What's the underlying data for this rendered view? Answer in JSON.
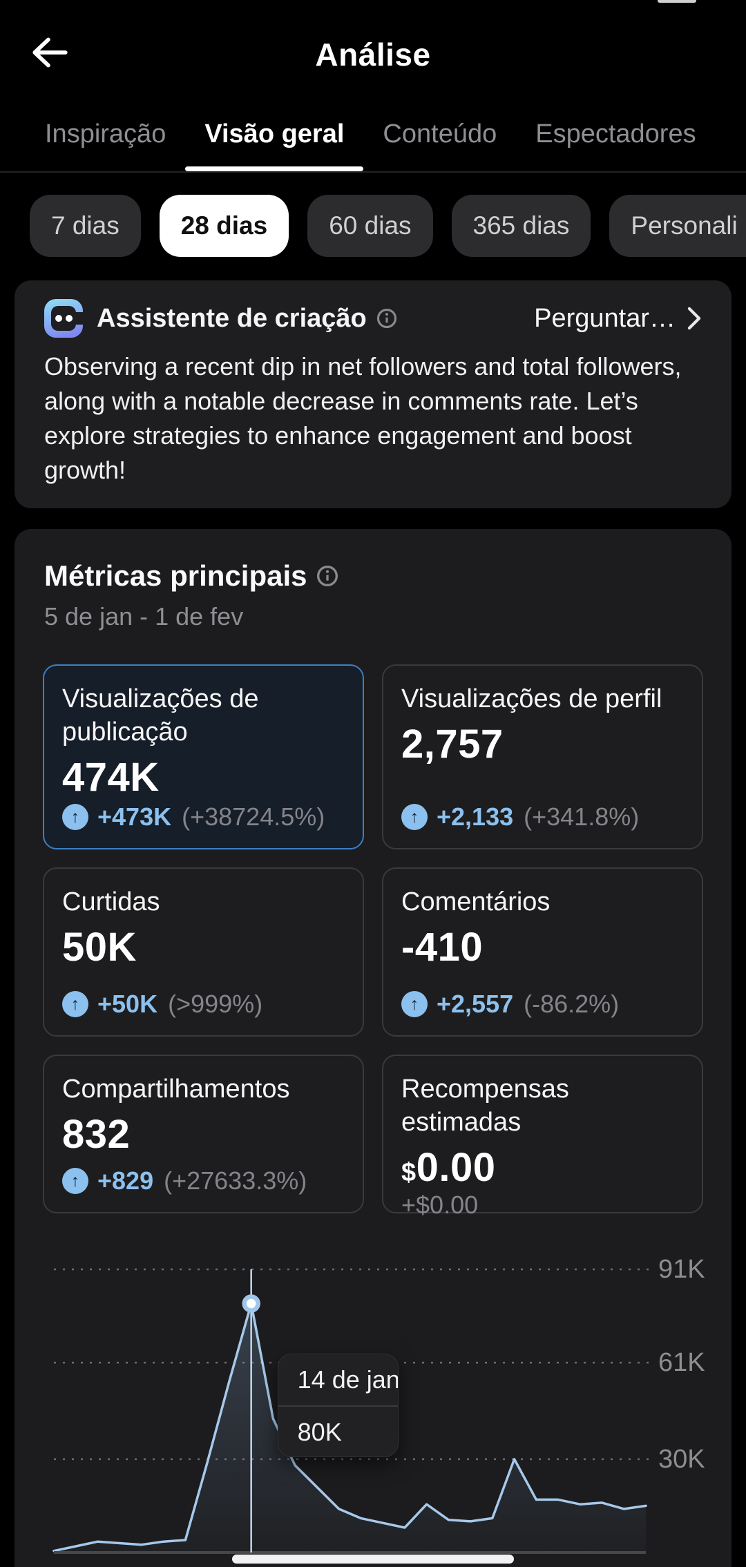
{
  "header": {
    "title": "Análise"
  },
  "tabs": {
    "items": [
      {
        "label": "Inspiração"
      },
      {
        "label": "Visão geral"
      },
      {
        "label": "Conteúdo"
      },
      {
        "label": "Espectadores"
      }
    ],
    "active_index": 1
  },
  "filters": {
    "items": [
      {
        "label": "7 dias"
      },
      {
        "label": "28 dias"
      },
      {
        "label": "60 dias"
      },
      {
        "label": "365 dias"
      },
      {
        "label": "Personali"
      }
    ],
    "selected_index": 1
  },
  "assistant": {
    "title": "Assistente de criação",
    "action_label": "Perguntar…",
    "body": "Observing a recent dip in net followers and total followers, along with a notable decrease in comments rate. Let’s explore strategies to enhance engagement and boost growth!"
  },
  "metrics": {
    "title": "Métricas principais",
    "date_range": "5 de jan - 1 de fev",
    "cards": [
      {
        "title": "Visualizações de publicação",
        "value_prefix": "",
        "value": "474K",
        "delta": "+473K",
        "delta_pct": "(+38724.5%)"
      },
      {
        "title": "Visualizações de perfil",
        "value_prefix": "",
        "value": "2,757",
        "delta": "+2,133",
        "delta_pct": "(+341.8%)"
      },
      {
        "title": "Curtidas",
        "value_prefix": "",
        "value": "50K",
        "delta": "+50K",
        "delta_pct": "(>999%)"
      },
      {
        "title": "Comentários",
        "value_prefix": "",
        "value": "-410",
        "delta": "+2,557",
        "delta_pct": "(-86.2%)"
      },
      {
        "title": "Compartilhamentos",
        "value_prefix": "",
        "value": "832",
        "delta": "+829",
        "delta_pct": "(+27633.3%)"
      },
      {
        "title": "Recompensas estimadas",
        "value_prefix": "$",
        "value": "0.00",
        "delta": "+$0.00",
        "delta_pct": ""
      }
    ]
  },
  "chart_data": {
    "type": "line",
    "title": "",
    "unit": "K",
    "n_points": 28,
    "values_k": [
      0.5,
      2,
      3.5,
      3,
      2.5,
      3.5,
      4,
      29,
      55,
      80,
      43,
      28,
      21,
      14,
      11,
      9.5,
      8,
      15.5,
      10.5,
      10,
      11,
      30,
      17,
      17,
      15.5,
      16,
      14,
      15
    ],
    "yticks": [
      {
        "value": 91,
        "label": "91K"
      },
      {
        "value": 61,
        "label": "61K"
      },
      {
        "value": 30,
        "label": "30K"
      }
    ],
    "ylim": [
      0,
      95
    ],
    "grid": "dashed-horizontal",
    "legend": "none",
    "selected_point": {
      "index": 9,
      "date_label": "14 de jan",
      "value_label": "80K"
    }
  },
  "colors": {
    "accent_blue": "#8cc1ef",
    "selected_card_border": "#3d7fc4",
    "chart_line": "#a6c9eb",
    "gridline": "#6e6e72",
    "tick_label": "#8e8e92",
    "card_border": "#3a3a3c"
  }
}
